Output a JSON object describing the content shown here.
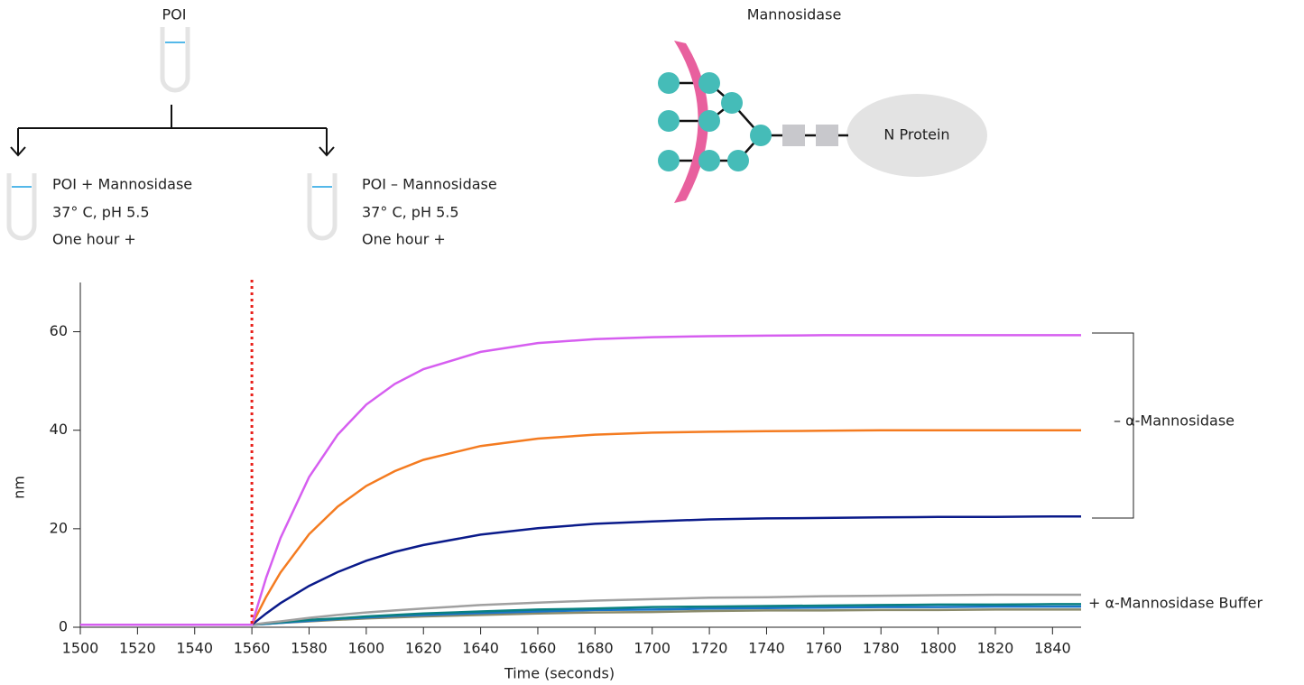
{
  "diagram": {
    "tube_label": "POI",
    "left_tube": [
      "POI + Mannosidase",
      "37° C, pH 5.5",
      "One hour +"
    ],
    "right_tube": [
      "POI – Mannosidase",
      "37° C, pH 5.5",
      "One hour +"
    ],
    "glycan_title": "Mannosidase",
    "protein_label": "N Protein"
  },
  "chart_data": {
    "type": "line",
    "x_label": "Time (seconds)",
    "y_label": "nm",
    "x": [
      1500,
      1520,
      1540,
      1550,
      1560,
      1565,
      1570,
      1580,
      1590,
      1600,
      1610,
      1620,
      1640,
      1660,
      1680,
      1700,
      1720,
      1740,
      1760,
      1780,
      1800,
      1820,
      1840,
      1850
    ],
    "series": [
      {
        "color": "#d65ef0",
        "values": [
          0.5,
          0.5,
          0.5,
          0.5,
          0.5,
          10.1,
          18.1,
          30.5,
          39.1,
          45.2,
          49.4,
          52.4,
          55.9,
          57.7,
          58.5,
          58.9,
          59.1,
          59.2,
          59.3,
          59.3,
          59.3,
          59.3,
          59.3,
          59.3
        ]
      },
      {
        "color": "#f47b20",
        "values": [
          0.5,
          0.5,
          0.5,
          0.5,
          0.5,
          6.2,
          11.1,
          18.9,
          24.5,
          28.7,
          31.7,
          34.0,
          36.8,
          38.3,
          39.1,
          39.5,
          39.7,
          39.8,
          39.9,
          40.0,
          40.0,
          40.0,
          40.0,
          40.0
        ]
      },
      {
        "color": "#0a1a8a",
        "values": [
          0.5,
          0.5,
          0.5,
          0.5,
          0.5,
          2.8,
          4.9,
          8.4,
          11.2,
          13.5,
          15.3,
          16.7,
          18.8,
          20.1,
          21.0,
          21.5,
          21.9,
          22.1,
          22.2,
          22.3,
          22.4,
          22.4,
          22.5,
          22.5
        ]
      },
      {
        "color": "#a0a0a0",
        "values": [
          0.5,
          0.5,
          0.5,
          0.5,
          0.5,
          0.9,
          1.2,
          1.9,
          2.5,
          3.0,
          3.4,
          3.8,
          4.5,
          5.0,
          5.4,
          5.7,
          6.0,
          6.1,
          6.3,
          6.4,
          6.5,
          6.6,
          6.6,
          6.6
        ]
      },
      {
        "color": "#0a8080",
        "values": [
          0.5,
          0.5,
          0.5,
          0.5,
          0.5,
          0.8,
          1.0,
          1.5,
          1.8,
          2.2,
          2.5,
          2.8,
          3.2,
          3.6,
          3.8,
          4.1,
          4.2,
          4.3,
          4.4,
          4.5,
          4.6,
          4.6,
          4.7,
          4.7
        ]
      },
      {
        "color": "#1a75c8",
        "values": [
          0.5,
          0.5,
          0.5,
          0.5,
          0.5,
          0.7,
          0.9,
          1.3,
          1.7,
          2.0,
          2.3,
          2.5,
          2.9,
          3.2,
          3.5,
          3.6,
          3.8,
          3.9,
          4.0,
          4.1,
          4.1,
          4.2,
          4.2,
          4.2
        ]
      },
      {
        "color": "#8a8a6a",
        "values": [
          0.5,
          0.5,
          0.5,
          0.5,
          0.5,
          0.7,
          0.9,
          1.2,
          1.5,
          1.8,
          2.0,
          2.2,
          2.5,
          2.8,
          3.0,
          3.1,
          3.3,
          3.4,
          3.4,
          3.5,
          3.5,
          3.6,
          3.6,
          3.6
        ]
      }
    ],
    "xlim": [
      1500,
      1850
    ],
    "xticks": [
      1500,
      1520,
      1540,
      1560,
      1580,
      1600,
      1620,
      1640,
      1660,
      1680,
      1700,
      1720,
      1740,
      1760,
      1780,
      1800,
      1820,
      1840
    ],
    "ylim": [
      0,
      70
    ],
    "yticks": [
      0,
      20,
      40,
      60
    ],
    "marker_x": 1560,
    "marker_color": "#e8201a",
    "annotations": [
      "– α-Mannosidase",
      "+ α-Mannosidase Buffer"
    ]
  }
}
